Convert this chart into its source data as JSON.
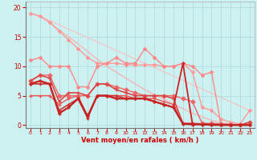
{
  "background_color": "#cdf0f0",
  "grid_color": "#b0dede",
  "xlabel": "Vent moyen/en rafales ( km/h )",
  "xlim": [
    -0.5,
    23.5
  ],
  "ylim": [
    -0.5,
    21
  ],
  "yticks": [
    0,
    5,
    10,
    15,
    20
  ],
  "xticks": [
    0,
    1,
    2,
    3,
    4,
    5,
    6,
    7,
    8,
    9,
    10,
    11,
    12,
    13,
    14,
    15,
    16,
    17,
    18,
    19,
    20,
    21,
    22,
    23
  ],
  "lines": [
    {
      "x": [
        0,
        1,
        2,
        3,
        4,
        5,
        6,
        7,
        8,
        9,
        10,
        11,
        12,
        13,
        14,
        15,
        16,
        17,
        18,
        19,
        20,
        21,
        22,
        23
      ],
      "y": [
        19,
        18.5,
        17.5,
        16.2,
        15.0,
        13.8,
        12.5,
        11.2,
        10.0,
        9.0,
        8.0,
        7.0,
        6.0,
        5.2,
        4.4,
        3.6,
        2.8,
        2.0,
        1.4,
        0.8,
        0.4,
        0.2,
        0.1,
        0.0
      ],
      "color": "#ffaaaa",
      "lw": 0.8,
      "marker": null,
      "ms": 0
    },
    {
      "x": [
        0,
        1,
        23
      ],
      "y": [
        19,
        18.5,
        2.5
      ],
      "color": "#ffbbbb",
      "lw": 0.7,
      "marker": null,
      "ms": 0
    },
    {
      "x": [
        0,
        1,
        2,
        3,
        4,
        5,
        6,
        7,
        8,
        9,
        10,
        11,
        12,
        13,
        14,
        15,
        16,
        17,
        18,
        19,
        20,
        21,
        22,
        23
      ],
      "y": [
        19,
        18.5,
        17.5,
        16.0,
        14.5,
        13.0,
        11.5,
        10.5,
        10.5,
        10.5,
        10.3,
        10.2,
        10.2,
        10.3,
        10.0,
        10.0,
        10.5,
        9.0,
        3.0,
        2.5,
        1.0,
        0.5,
        0.2,
        2.5
      ],
      "color": "#ff9999",
      "lw": 1.0,
      "marker": "D",
      "ms": 2.0
    },
    {
      "x": [
        0,
        1,
        2,
        3,
        4,
        5,
        6,
        7,
        8,
        9,
        10,
        11,
        12,
        13,
        14,
        15,
        16,
        17,
        18,
        19,
        20,
        21,
        22,
        23
      ],
      "y": [
        11,
        11.5,
        10.0,
        10.0,
        10.0,
        6.5,
        6.5,
        10.0,
        10.5,
        11.5,
        10.5,
        10.5,
        13.0,
        11.5,
        10.0,
        10.0,
        10.5,
        10.0,
        8.5,
        9.0,
        0.0,
        0.0,
        0.0,
        0.0
      ],
      "color": "#ff8888",
      "lw": 1.0,
      "marker": "D",
      "ms": 2.0
    },
    {
      "x": [
        0,
        1,
        2,
        3,
        4,
        5,
        6,
        7,
        8,
        9,
        10,
        11,
        12,
        13,
        14,
        15,
        16,
        17,
        18,
        19,
        20,
        21,
        22,
        23
      ],
      "y": [
        7.5,
        8.5,
        8.5,
        5.0,
        5.0,
        5.0,
        5.0,
        7.0,
        7.0,
        6.5,
        6.0,
        5.5,
        5.0,
        5.0,
        5.0,
        5.0,
        4.5,
        4.0,
        0.3,
        0.3,
        0.2,
        0.1,
        0.0,
        0.5
      ],
      "color": "#ee6666",
      "lw": 1.0,
      "marker": "D",
      "ms": 2.5
    },
    {
      "x": [
        0,
        1,
        2,
        3,
        4,
        5,
        6,
        7,
        8,
        9,
        10,
        11,
        12,
        13,
        14,
        15,
        16,
        17,
        18,
        19,
        20,
        21,
        22,
        23
      ],
      "y": [
        7.5,
        8.5,
        8.0,
        4.0,
        5.5,
        5.5,
        5.0,
        7.0,
        7.0,
        6.0,
        5.5,
        5.0,
        5.0,
        5.0,
        5.0,
        4.5,
        0.3,
        0.3,
        0.2,
        0.2,
        0.1,
        0.1,
        0.0,
        0.5
      ],
      "color": "#dd4444",
      "lw": 1.2,
      "marker": "+",
      "ms": 3.5
    },
    {
      "x": [
        0,
        1,
        2,
        3,
        4,
        5,
        6,
        7,
        8,
        9,
        10,
        11,
        12,
        13,
        14,
        15,
        16,
        17,
        18,
        19,
        20,
        21,
        22,
        23
      ],
      "y": [
        5.0,
        5.0,
        5.0,
        3.5,
        4.5,
        5.0,
        1.5,
        5.0,
        5.0,
        5.0,
        5.0,
        4.5,
        4.5,
        4.5,
        4.0,
        3.5,
        0.3,
        0.2,
        0.1,
        0.1,
        0.0,
        0.0,
        0.0,
        0.0
      ],
      "color": "#ee5555",
      "lw": 1.0,
      "marker": "+",
      "ms": 3.0
    },
    {
      "x": [
        0,
        1,
        2,
        3,
        4,
        5,
        6,
        7,
        8,
        9,
        10,
        11,
        12,
        13,
        14,
        15,
        16,
        17,
        18,
        19,
        20,
        21,
        22,
        23
      ],
      "y": [
        7.0,
        7.0,
        7.0,
        2.5,
        3.5,
        4.5,
        1.5,
        5.0,
        5.0,
        5.0,
        4.5,
        4.5,
        4.5,
        4.0,
        3.5,
        3.0,
        0.2,
        0.2,
        0.1,
        0.1,
        0.0,
        0.0,
        0.0,
        0.0
      ],
      "color": "#cc3333",
      "lw": 1.2,
      "marker": "+",
      "ms": 3.0
    },
    {
      "x": [
        0,
        1,
        2,
        3,
        4,
        5,
        6,
        7,
        8,
        9,
        10,
        11,
        12,
        13,
        14,
        15,
        16,
        17,
        18,
        19,
        20,
        21,
        22,
        23
      ],
      "y": [
        7.0,
        7.5,
        7.0,
        2.0,
        3.0,
        4.5,
        1.5,
        5.0,
        5.0,
        4.5,
        4.5,
        4.5,
        4.5,
        4.0,
        3.5,
        3.0,
        0.2,
        0.1,
        0.1,
        0.0,
        0.0,
        0.0,
        0.0,
        0.0
      ],
      "color": "#bb2222",
      "lw": 1.5,
      "marker": "+",
      "ms": 3.5
    },
    {
      "x": [
        0,
        1,
        2,
        3,
        4,
        5,
        6,
        7,
        8,
        9,
        10,
        11,
        12,
        13,
        14,
        15,
        16,
        17
      ],
      "y": [
        7.0,
        7.5,
        7.0,
        2.0,
        3.0,
        4.5,
        1.2,
        5.0,
        5.0,
        4.5,
        4.5,
        4.5,
        4.5,
        4.0,
        3.5,
        3.0,
        10.5,
        0.1
      ],
      "color": "#cc2222",
      "lw": 1.3,
      "marker": "+",
      "ms": 3.0
    }
  ]
}
